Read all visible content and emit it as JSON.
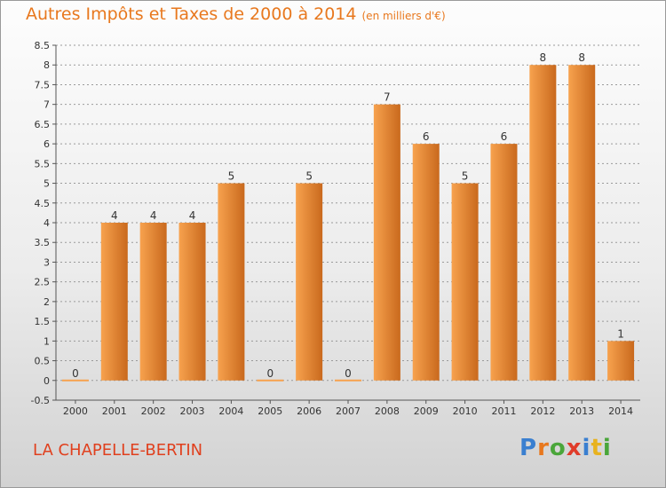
{
  "header": {
    "title": "Autres Impôts et Taxes de 2000 à 2014",
    "subtitle": "(en milliers d'€)"
  },
  "footer": {
    "commune": "LA CHAPELLE-BERTIN",
    "brand": "Proxiti",
    "brand_colors": [
      "#3a7fd0",
      "#e8781e",
      "#4aa63a",
      "#e03c2a",
      "#3a7fd0",
      "#e8b21e",
      "#4aa63a"
    ]
  },
  "colors": {
    "bar_light": "#f7a24e",
    "bar_dark": "#c9691d",
    "text": "#333333",
    "grid": "#9a9a9a"
  },
  "chart_data": {
    "type": "bar",
    "categories": [
      "2000",
      "2001",
      "2002",
      "2003",
      "2004",
      "2005",
      "2006",
      "2007",
      "2008",
      "2009",
      "2010",
      "2011",
      "2012",
      "2013",
      "2014"
    ],
    "values": [
      0,
      4,
      4,
      4,
      5,
      0,
      5,
      0,
      7,
      6,
      5,
      6,
      8,
      8,
      1
    ],
    "data_labels": [
      "0",
      "4",
      "4",
      "4",
      "5",
      "0",
      "5",
      "0",
      "7",
      "6",
      "5",
      "6",
      "8",
      "8",
      "1"
    ],
    "ylim": [
      -0.5,
      8.5
    ],
    "yticks": [
      -0.5,
      0,
      0.5,
      1,
      1.5,
      2,
      2.5,
      3,
      3.5,
      4,
      4.5,
      5,
      5.5,
      6,
      6.5,
      7,
      7.5,
      8,
      8.5
    ],
    "ytick_labels": [
      "-0.5",
      "0",
      "0.5",
      "1",
      "1.5",
      "2",
      "2.5",
      "3",
      "3.5",
      "4",
      "4.5",
      "5",
      "5.5",
      "6",
      "6.5",
      "7",
      "7.5",
      "8",
      "8.5"
    ],
    "grid": "horizontal dashed",
    "xlabel": "",
    "ylabel": ""
  }
}
